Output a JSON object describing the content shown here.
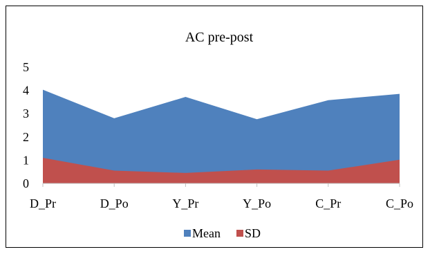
{
  "chart_data": {
    "type": "area",
    "title": "AC pre-post",
    "categories": [
      "D_Pr",
      "D_Po",
      "Y_Pr",
      "Y_Po",
      "C_Pr",
      "C_Po"
    ],
    "series": [
      {
        "name": "Mean",
        "values": [
          4.03,
          2.8,
          3.72,
          2.76,
          3.58,
          3.85
        ],
        "color": "#4f81bd"
      },
      {
        "name": "SD",
        "values": [
          1.1,
          0.55,
          0.45,
          0.6,
          0.55,
          1.02
        ],
        "color": "#c0504d"
      }
    ],
    "ylim": [
      0,
      5
    ],
    "yticks": [
      "0",
      "1",
      "2",
      "3",
      "4",
      "5"
    ],
    "grid": false,
    "legend_position": "bottom"
  }
}
